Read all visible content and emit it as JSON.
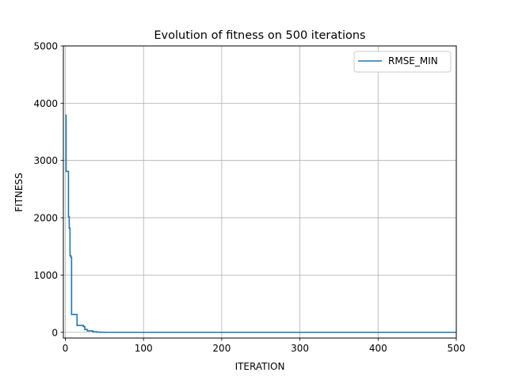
{
  "chart_data": {
    "type": "line",
    "title": "Evolution of fitness on 500 iterations",
    "xlabel": "ITERATION",
    "ylabel": "FITNESS",
    "xlim": [
      -2.5,
      500
    ],
    "ylim": [
      -100,
      5000
    ],
    "xticks": [
      0,
      100,
      200,
      300,
      400,
      500
    ],
    "yticks": [
      0,
      1000,
      2000,
      3000,
      4000,
      5000
    ],
    "grid": true,
    "legend_position": "upper right",
    "series": [
      {
        "name": "RMSE_MIN",
        "color": "#1f77b4",
        "x": [
          0,
          1,
          1,
          4,
          4,
          5,
          5,
          6,
          6,
          7,
          7,
          8,
          8,
          15,
          15,
          23,
          23,
          25,
          25,
          28,
          28,
          35,
          35,
          40,
          40,
          45,
          45,
          50,
          50,
          500
        ],
        "y": [
          3790,
          3790,
          2810,
          2810,
          2020,
          2020,
          1820,
          1820,
          1340,
          1340,
          1310,
          1310,
          310,
          310,
          120,
          120,
          100,
          100,
          50,
          50,
          25,
          25,
          10,
          10,
          3,
          3,
          1,
          1,
          0,
          0
        ]
      }
    ]
  }
}
